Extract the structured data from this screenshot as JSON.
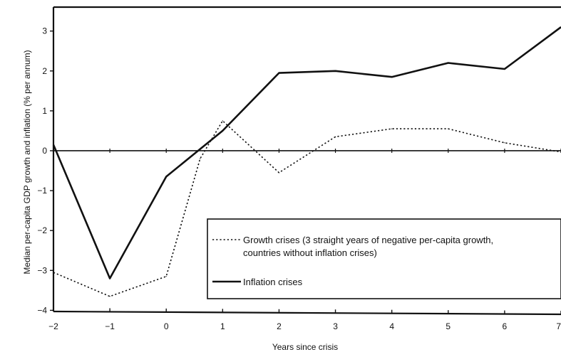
{
  "chart_data": {
    "type": "line",
    "xlabel": "Years since crisis",
    "ylabel": "Median per-capita GDP growth and inflation (% per annum)",
    "x": [
      -2,
      -1,
      0,
      1,
      2,
      3,
      4,
      5,
      6,
      7
    ],
    "x_tick_labels": [
      "−2",
      "−1",
      "0",
      "1",
      "2",
      "3",
      "4",
      "5",
      "6",
      "7"
    ],
    "y_ticks": [
      -4,
      -3,
      -2,
      -1,
      0,
      1,
      2,
      3
    ],
    "y_tick_labels": [
      "−4",
      "−3",
      "−2",
      "−1",
      "0",
      "1",
      "2",
      "3"
    ],
    "xlim": [
      -2,
      7
    ],
    "ylim": [
      -4.1,
      3.6
    ],
    "grid": false,
    "legend_position": "lower-right",
    "series": [
      {
        "name": "Growth crises (3 straight years of negative per-capita growth, countries without inflation crises)",
        "legend_lines": [
          "Growth crises (3 straight years of negative per-capita growth,",
          "countries without inflation crises)"
        ],
        "style": "dotted",
        "color": "#111111",
        "x": [
          -2,
          -1,
          0,
          0.6,
          1,
          2,
          3,
          4,
          5,
          6,
          7
        ],
        "values": [
          -3.05,
          -3.65,
          -3.15,
          -0.2,
          0.75,
          -0.55,
          0.35,
          0.55,
          0.55,
          0.2,
          -0.03
        ]
      },
      {
        "name": "Inflation crises",
        "legend_lines": [
          "Inflation crises"
        ],
        "style": "solid",
        "color": "#111111",
        "x": [
          -2,
          -1,
          0,
          1,
          2,
          3,
          4,
          5,
          6,
          7
        ],
        "values": [
          0.15,
          -3.2,
          -0.65,
          0.5,
          1.95,
          2.0,
          1.85,
          2.2,
          2.05,
          3.1
        ]
      }
    ]
  }
}
